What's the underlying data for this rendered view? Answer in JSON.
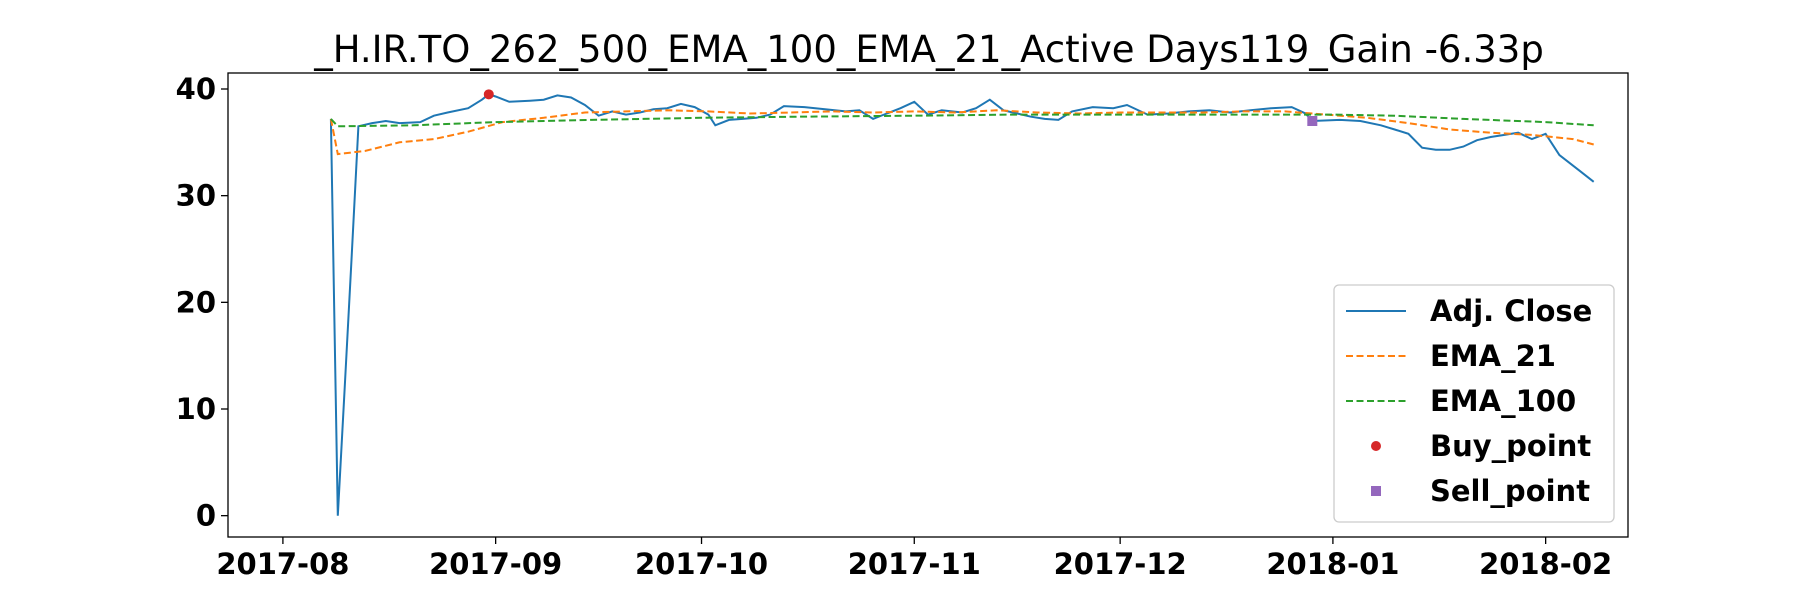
{
  "chart_data": {
    "type": "line",
    "title": "_H.IR.TO_262_500_EMA_100_EMA_21_Active Days119_Gain  -6.33p",
    "xlabel": "",
    "ylabel": "",
    "x_range": [
      "2017-07-24",
      "2018-02-13"
    ],
    "ylim": [
      -2,
      41.5
    ],
    "y_ticks": [
      0,
      10,
      20,
      30,
      40
    ],
    "x_ticks": [
      "2017-08",
      "2017-09",
      "2017-10",
      "2017-11",
      "2017-12",
      "2018-01",
      "2018-02"
    ],
    "grid": false,
    "legend_position": "lower right",
    "colors": {
      "adj_close": "#1f77b4",
      "ema_21": "#ff7f0e",
      "ema_100": "#2ca02c",
      "buy": "#d62728",
      "sell": "#9467bd"
    },
    "series": [
      {
        "name": "Adj. Close",
        "style": "solid",
        "color": "#1f77b4",
        "points": [
          [
            "2017-08-08",
            37.2
          ],
          [
            "2017-08-09",
            0.0
          ],
          [
            "2017-08-10",
            12.0
          ],
          [
            "2017-08-11",
            24.0
          ],
          [
            "2017-08-12",
            36.5
          ],
          [
            "2017-08-14",
            36.8
          ],
          [
            "2017-08-16",
            37.0
          ],
          [
            "2017-08-18",
            36.8
          ],
          [
            "2017-08-21",
            36.9
          ],
          [
            "2017-08-23",
            37.5
          ],
          [
            "2017-08-25",
            37.8
          ],
          [
            "2017-08-28",
            38.2
          ],
          [
            "2017-08-30",
            39.0
          ],
          [
            "2017-08-31",
            39.5
          ],
          [
            "2017-09-01",
            39.3
          ],
          [
            "2017-09-03",
            38.8
          ],
          [
            "2017-09-06",
            38.9
          ],
          [
            "2017-09-08",
            39.0
          ],
          [
            "2017-09-10",
            39.4
          ],
          [
            "2017-09-12",
            39.2
          ],
          [
            "2017-09-14",
            38.5
          ],
          [
            "2017-09-16",
            37.5
          ],
          [
            "2017-09-18",
            37.9
          ],
          [
            "2017-09-20",
            37.6
          ],
          [
            "2017-09-22",
            37.8
          ],
          [
            "2017-09-24",
            38.1
          ],
          [
            "2017-09-26",
            38.2
          ],
          [
            "2017-09-28",
            38.6
          ],
          [
            "2017-09-30",
            38.3
          ],
          [
            "2017-10-02",
            37.6
          ],
          [
            "2017-10-03",
            36.6
          ],
          [
            "2017-10-05",
            37.1
          ],
          [
            "2017-10-07",
            37.2
          ],
          [
            "2017-10-09",
            37.3
          ],
          [
            "2017-10-11",
            37.6
          ],
          [
            "2017-10-13",
            38.4
          ],
          [
            "2017-10-16",
            38.3
          ],
          [
            "2017-10-19",
            38.1
          ],
          [
            "2017-10-22",
            37.9
          ],
          [
            "2017-10-24",
            38.0
          ],
          [
            "2017-10-26",
            37.2
          ],
          [
            "2017-10-28",
            37.7
          ],
          [
            "2017-10-30",
            38.2
          ],
          [
            "2017-11-01",
            38.8
          ],
          [
            "2017-11-03",
            37.6
          ],
          [
            "2017-11-05",
            38.0
          ],
          [
            "2017-11-08",
            37.8
          ],
          [
            "2017-11-10",
            38.2
          ],
          [
            "2017-11-12",
            39.0
          ],
          [
            "2017-11-14",
            38.0
          ],
          [
            "2017-11-16",
            37.7
          ],
          [
            "2017-11-18",
            37.4
          ],
          [
            "2017-11-20",
            37.2
          ],
          [
            "2017-11-22",
            37.1
          ],
          [
            "2017-11-24",
            37.9
          ],
          [
            "2017-11-27",
            38.3
          ],
          [
            "2017-11-30",
            38.2
          ],
          [
            "2017-12-02",
            38.5
          ],
          [
            "2017-12-05",
            37.6
          ],
          [
            "2017-12-08",
            37.7
          ],
          [
            "2017-12-11",
            37.9
          ],
          [
            "2017-12-14",
            38.0
          ],
          [
            "2017-12-17",
            37.8
          ],
          [
            "2017-12-20",
            38.0
          ],
          [
            "2017-12-23",
            38.2
          ],
          [
            "2017-12-26",
            38.3
          ],
          [
            "2017-12-28",
            37.7
          ],
          [
            "2017-12-29",
            37.0
          ],
          [
            "2018-01-02",
            37.1
          ],
          [
            "2018-01-05",
            37.0
          ],
          [
            "2018-01-08",
            36.6
          ],
          [
            "2018-01-10",
            36.2
          ],
          [
            "2018-01-12",
            35.8
          ],
          [
            "2018-01-14",
            34.5
          ],
          [
            "2018-01-16",
            34.3
          ],
          [
            "2018-01-18",
            34.3
          ],
          [
            "2018-01-20",
            34.6
          ],
          [
            "2018-01-22",
            35.2
          ],
          [
            "2018-01-24",
            35.5
          ],
          [
            "2018-01-26",
            35.7
          ],
          [
            "2018-01-28",
            35.9
          ],
          [
            "2018-01-30",
            35.3
          ],
          [
            "2018-02-01",
            35.8
          ],
          [
            "2018-02-03",
            33.8
          ],
          [
            "2018-02-06",
            32.3
          ],
          [
            "2018-02-08",
            31.3
          ]
        ]
      },
      {
        "name": "EMA_21",
        "style": "dashed",
        "color": "#ff7f0e",
        "points": [
          [
            "2017-08-08",
            37.2
          ],
          [
            "2017-08-09",
            33.9
          ],
          [
            "2017-08-13",
            34.2
          ],
          [
            "2017-08-18",
            35.0
          ],
          [
            "2017-08-23",
            35.3
          ],
          [
            "2017-08-28",
            36.0
          ],
          [
            "2017-09-02",
            36.9
          ],
          [
            "2017-09-08",
            37.3
          ],
          [
            "2017-09-14",
            37.8
          ],
          [
            "2017-09-20",
            37.9
          ],
          [
            "2017-09-26",
            38.0
          ],
          [
            "2017-10-02",
            37.9
          ],
          [
            "2017-10-08",
            37.7
          ],
          [
            "2017-10-14",
            37.8
          ],
          [
            "2017-10-20",
            37.9
          ],
          [
            "2017-10-26",
            37.8
          ],
          [
            "2017-11-01",
            37.9
          ],
          [
            "2017-11-07",
            37.8
          ],
          [
            "2017-11-13",
            38.0
          ],
          [
            "2017-11-19",
            37.8
          ],
          [
            "2017-11-25",
            37.7
          ],
          [
            "2017-12-01",
            37.8
          ],
          [
            "2017-12-07",
            37.8
          ],
          [
            "2017-12-13",
            37.8
          ],
          [
            "2017-12-19",
            37.9
          ],
          [
            "2017-12-25",
            37.9
          ],
          [
            "2017-12-31",
            37.6
          ],
          [
            "2018-01-06",
            37.3
          ],
          [
            "2018-01-12",
            36.8
          ],
          [
            "2018-01-18",
            36.2
          ],
          [
            "2018-01-24",
            35.9
          ],
          [
            "2018-01-30",
            35.7
          ],
          [
            "2018-02-05",
            35.3
          ],
          [
            "2018-02-08",
            34.8
          ]
        ]
      },
      {
        "name": "EMA_100",
        "style": "dashed",
        "color": "#2ca02c",
        "points": [
          [
            "2017-08-08",
            37.2
          ],
          [
            "2017-08-09",
            36.5
          ],
          [
            "2017-08-20",
            36.6
          ],
          [
            "2017-09-01",
            36.9
          ],
          [
            "2017-09-15",
            37.1
          ],
          [
            "2017-10-01",
            37.3
          ],
          [
            "2017-10-15",
            37.4
          ],
          [
            "2017-11-01",
            37.5
          ],
          [
            "2017-11-15",
            37.6
          ],
          [
            "2017-12-01",
            37.6
          ],
          [
            "2017-12-15",
            37.6
          ],
          [
            "2018-01-01",
            37.6
          ],
          [
            "2018-01-10",
            37.5
          ],
          [
            "2018-01-20",
            37.2
          ],
          [
            "2018-02-01",
            36.9
          ],
          [
            "2018-02-08",
            36.6
          ]
        ]
      }
    ],
    "markers": [
      {
        "name": "Buy_point",
        "shape": "circle",
        "color": "#d62728",
        "x": "2017-08-31",
        "y": 39.5
      },
      {
        "name": "Sell_point",
        "shape": "square",
        "color": "#9467bd",
        "x": "2017-12-29",
        "y": 37.0
      }
    ],
    "legend": [
      {
        "label": "Adj. Close",
        "kind": "line-solid",
        "color": "#1f77b4"
      },
      {
        "label": "EMA_21",
        "kind": "line-dashed",
        "color": "#ff7f0e"
      },
      {
        "label": "EMA_100",
        "kind": "line-dashed",
        "color": "#2ca02c"
      },
      {
        "label": "Buy_point",
        "kind": "circle",
        "color": "#d62728"
      },
      {
        "label": "Sell_point",
        "kind": "square",
        "color": "#9467bd"
      }
    ]
  }
}
